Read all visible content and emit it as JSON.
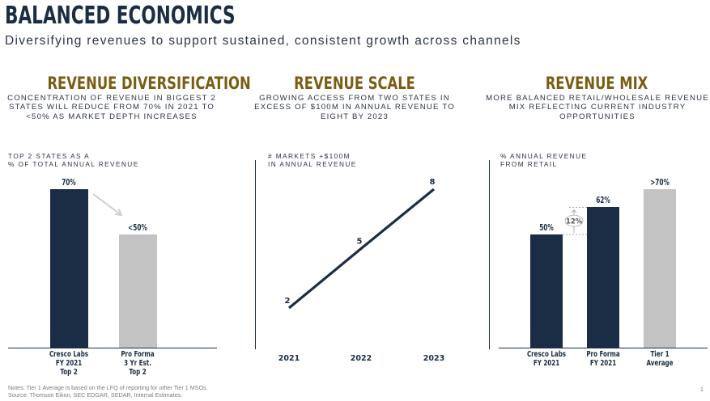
{
  "header": {
    "title": "BALANCED ECONOMICS",
    "subtitle": "Diversifying revenues to support sustained, consistent growth across channels"
  },
  "columns": [
    {
      "heading": "REVENUE DIVERSIFICATION",
      "description": "CONCENTRATION OF REVENUE IN BIGGEST 2 STATES WILL REDUCE FROM 70% IN 2021 TO <50% AS MARKET DEPTH INCREASES",
      "chart_caption_line1": "TOP 2 STATES AS A",
      "chart_caption_line2": "% OF TOTAL ANNUAL REVENUE"
    },
    {
      "heading": "REVENUE SCALE",
      "description": "GROWING ACCESS FROM TWO STATES IN EXCESS OF $100M IN ANNUAL REVENUE TO EIGHT BY 2023",
      "chart_caption_line1": "# MARKETS +$100M",
      "chart_caption_line2": "IN ANNUAL REVENUE"
    },
    {
      "heading": "REVENUE MIX",
      "description": "MORE BALANCED RETAIL/WHOLESALE REVENUE MIX REFLECTING CURRENT INDUSTRY OPPORTUNITIES",
      "chart_caption_line1": "% ANNUAL REVENUE",
      "chart_caption_line2": "FROM RETAIL"
    }
  ],
  "chart_data": [
    {
      "type": "bar",
      "categories": [
        "Cresco Labs\nFY 2021\nTop 2",
        "Pro Forma\n3 Yr Est.\nTop 2"
      ],
      "values": [
        70,
        50
      ],
      "value_labels": [
        "70%",
        "<50%"
      ],
      "colors": [
        "#1b2d45",
        "#c3c3c3"
      ],
      "ylim": [
        0,
        100
      ],
      "annotation": "arrow from 70% bar to <50% bar"
    },
    {
      "type": "line",
      "x": [
        "2021",
        "2022",
        "2023"
      ],
      "values": [
        2,
        5,
        8
      ],
      "value_labels": [
        "2",
        "5",
        "8"
      ],
      "color": "#1b2d45",
      "ylim": [
        0,
        10
      ]
    },
    {
      "type": "bar",
      "categories": [
        "Cresco Labs\nFY 2021",
        "Pro Forma\nFY 2021",
        "Tier 1\nAverage"
      ],
      "values": [
        50,
        62,
        70
      ],
      "value_labels": [
        "50%",
        "62%",
        ">70%"
      ],
      "colors": [
        "#1b2d45",
        "#1b2d45",
        "#c3c3c3"
      ],
      "ylim": [
        0,
        100
      ],
      "delta_label": "12%"
    }
  ],
  "footer": {
    "notes_line1": "Notes:   Tier 1 Average is based on the LFQ of reporting for other Tier 1 MSOs.",
    "notes_line2": "Source: Thomson Eikon, SEC EDGAR, SEDAR, Internal Estimates.",
    "page_number": "1"
  },
  "colors": {
    "navy": "#1b2d45",
    "gold": "#7a5c13",
    "gray": "#c3c3c3"
  }
}
